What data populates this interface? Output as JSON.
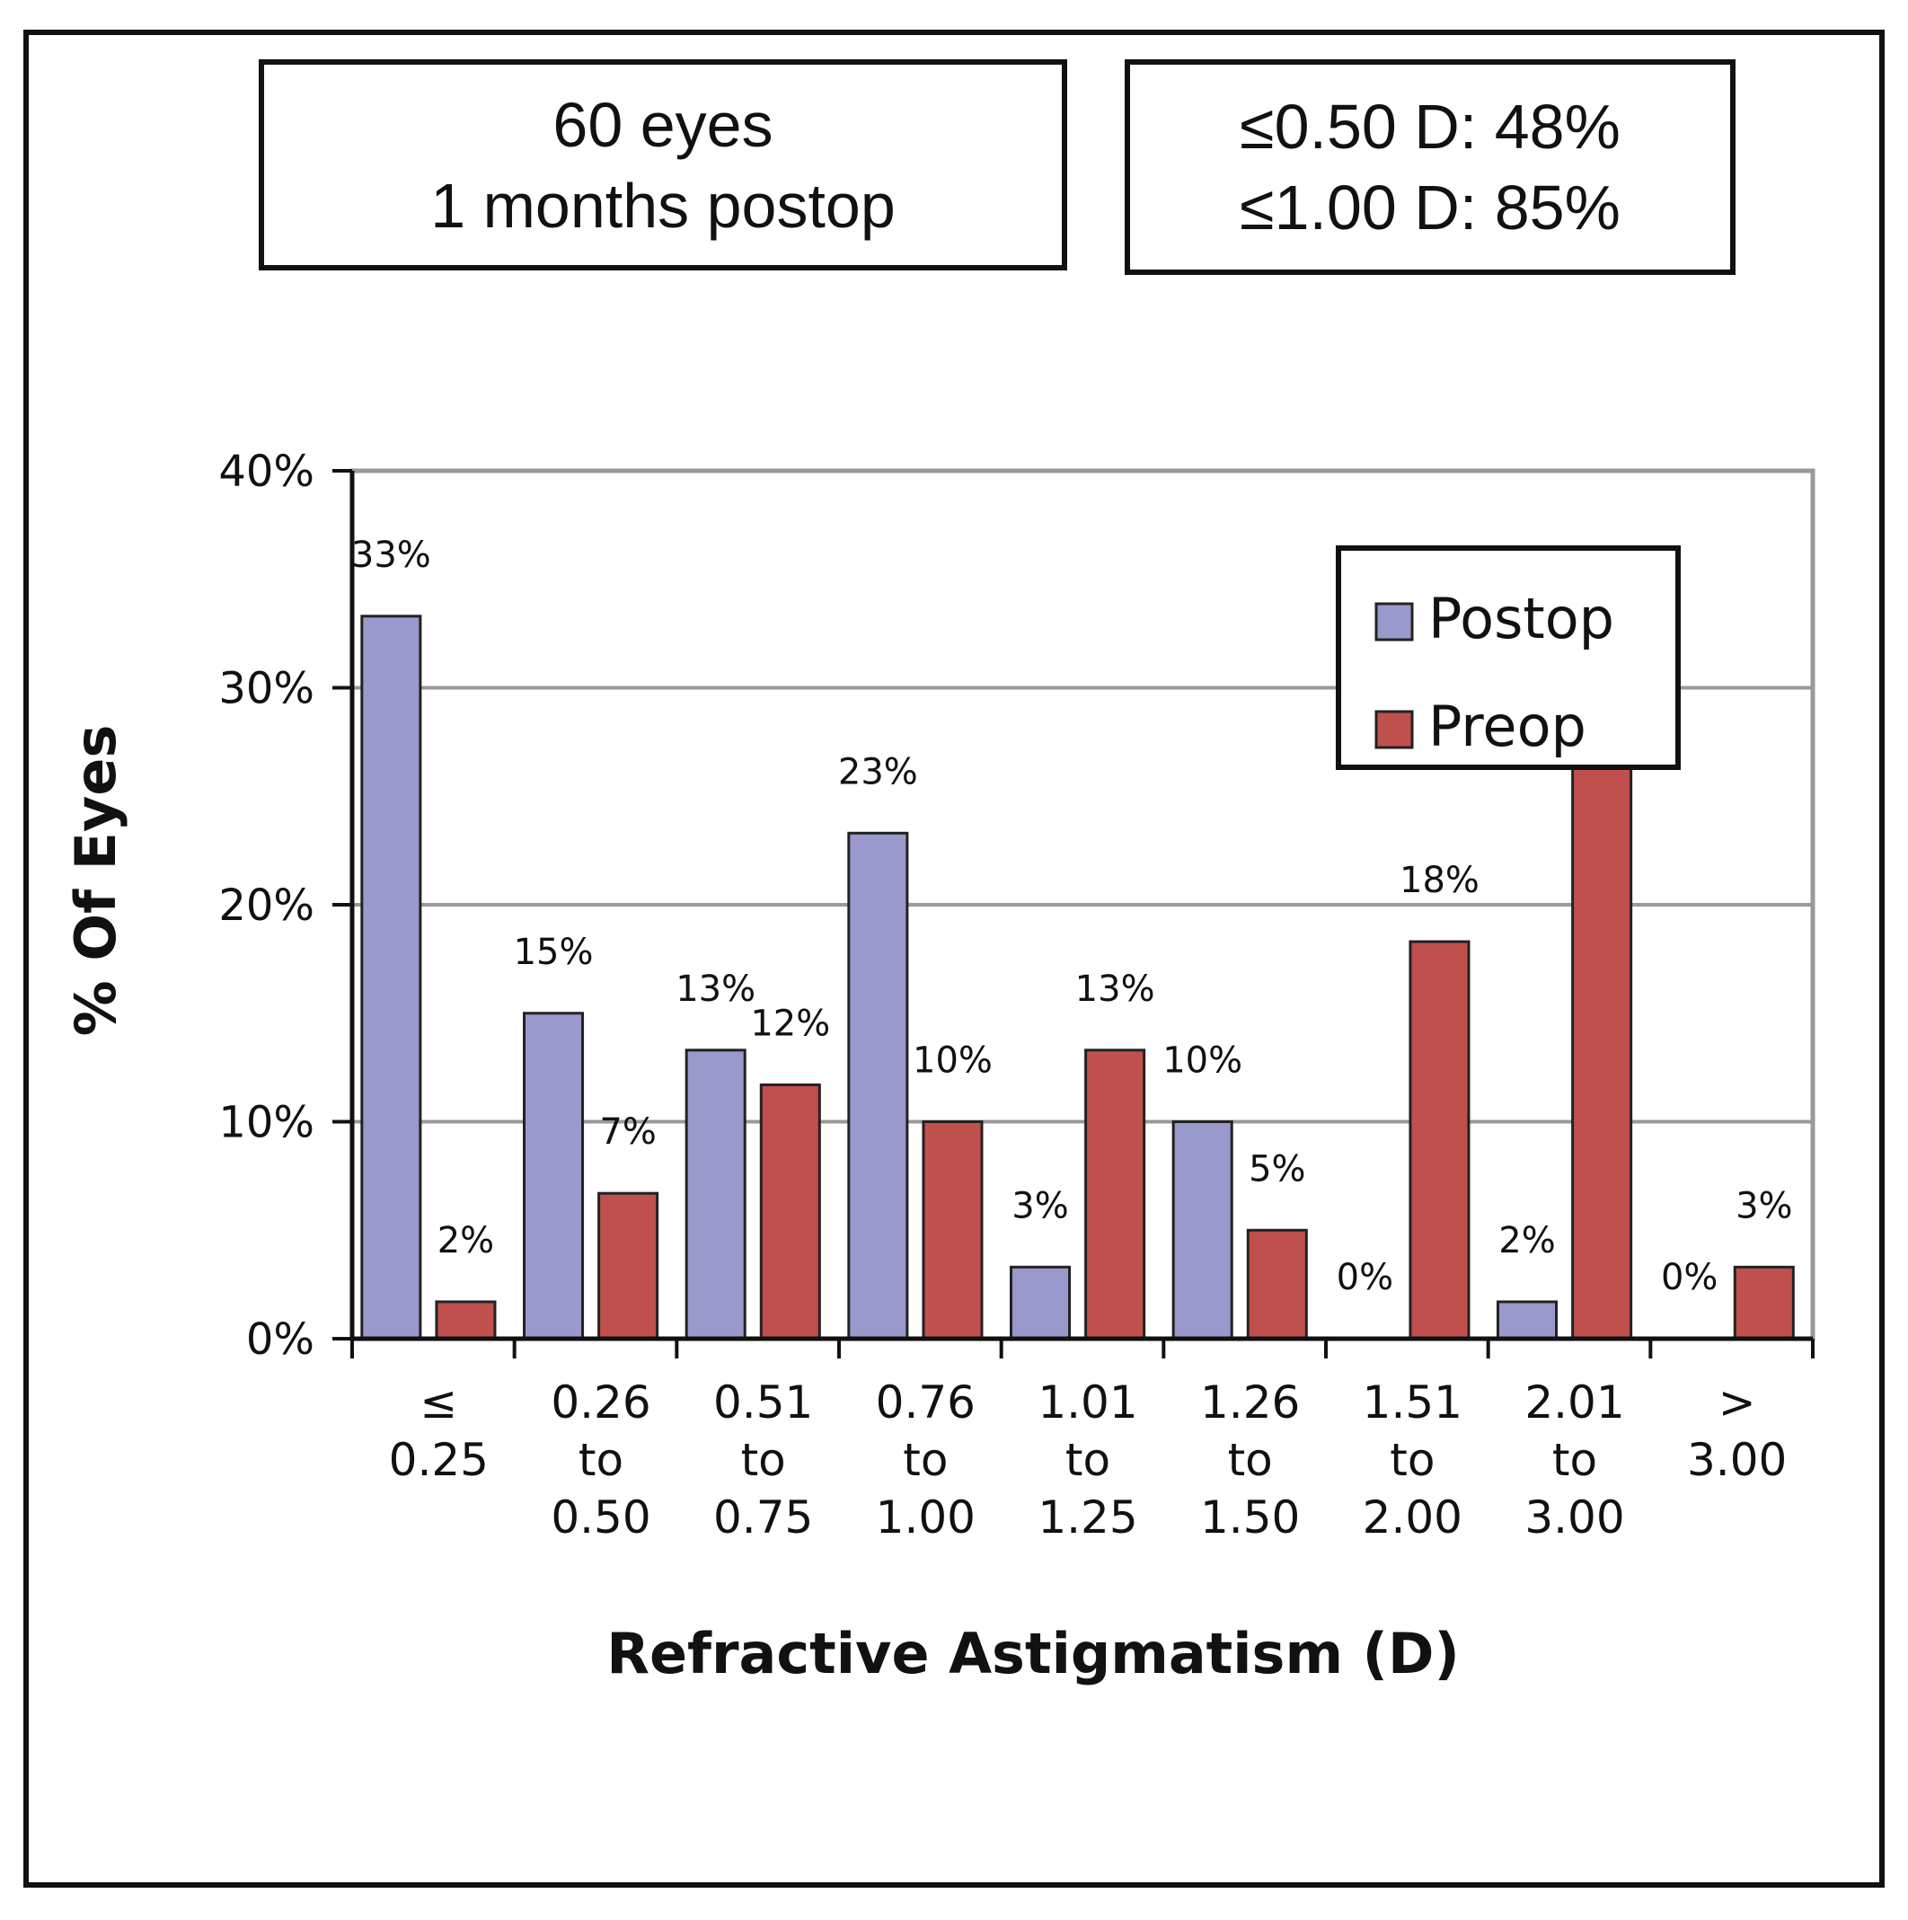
{
  "info_left": {
    "line1": "60 eyes",
    "line2": "1 months postop"
  },
  "info_right": {
    "line1": "≤0.50 D: 48%",
    "line2": "≤1.00 D: 85%"
  },
  "chart_data": {
    "type": "bar",
    "title": "",
    "xlabel": "Refractive Astigmatism (D)",
    "ylabel": "% Of Eyes",
    "ylim": [
      0,
      40
    ],
    "yticks": [
      "0%",
      "10%",
      "20%",
      "30%",
      "40%"
    ],
    "ytick_values": [
      0,
      10,
      20,
      30,
      40
    ],
    "grid": true,
    "legend_position": "top-right",
    "categories": [
      [
        "≤",
        "0.25"
      ],
      [
        "0.26",
        "to",
        "0.50"
      ],
      [
        "0.51",
        "to",
        "0.75"
      ],
      [
        "0.76",
        "to",
        "1.00"
      ],
      [
        "1.01",
        "to",
        "1.25"
      ],
      [
        "1.26",
        "to",
        "1.50"
      ],
      [
        "1.51",
        "to",
        "2.00"
      ],
      [
        "2.01",
        "to",
        "3.00"
      ],
      [
        ">",
        "3.00"
      ]
    ],
    "series": [
      {
        "name": "Postop",
        "color": "#9999cc",
        "values": [
          33.3,
          15,
          13.3,
          23.3,
          3.3,
          10,
          0,
          1.7,
          0
        ],
        "labels": [
          "33%",
          "15%",
          "13%",
          "23%",
          "3%",
          "10%",
          "0%",
          "2%",
          "0%"
        ]
      },
      {
        "name": "Preop",
        "color": "#c0504d",
        "values": [
          1.7,
          6.7,
          11.7,
          10,
          13.3,
          5,
          18.3,
          26.7,
          3.3
        ],
        "labels": [
          "2%",
          "7%",
          "12%",
          "10%",
          "13%",
          "5%",
          "18%",
          "",
          "3%"
        ]
      }
    ]
  }
}
